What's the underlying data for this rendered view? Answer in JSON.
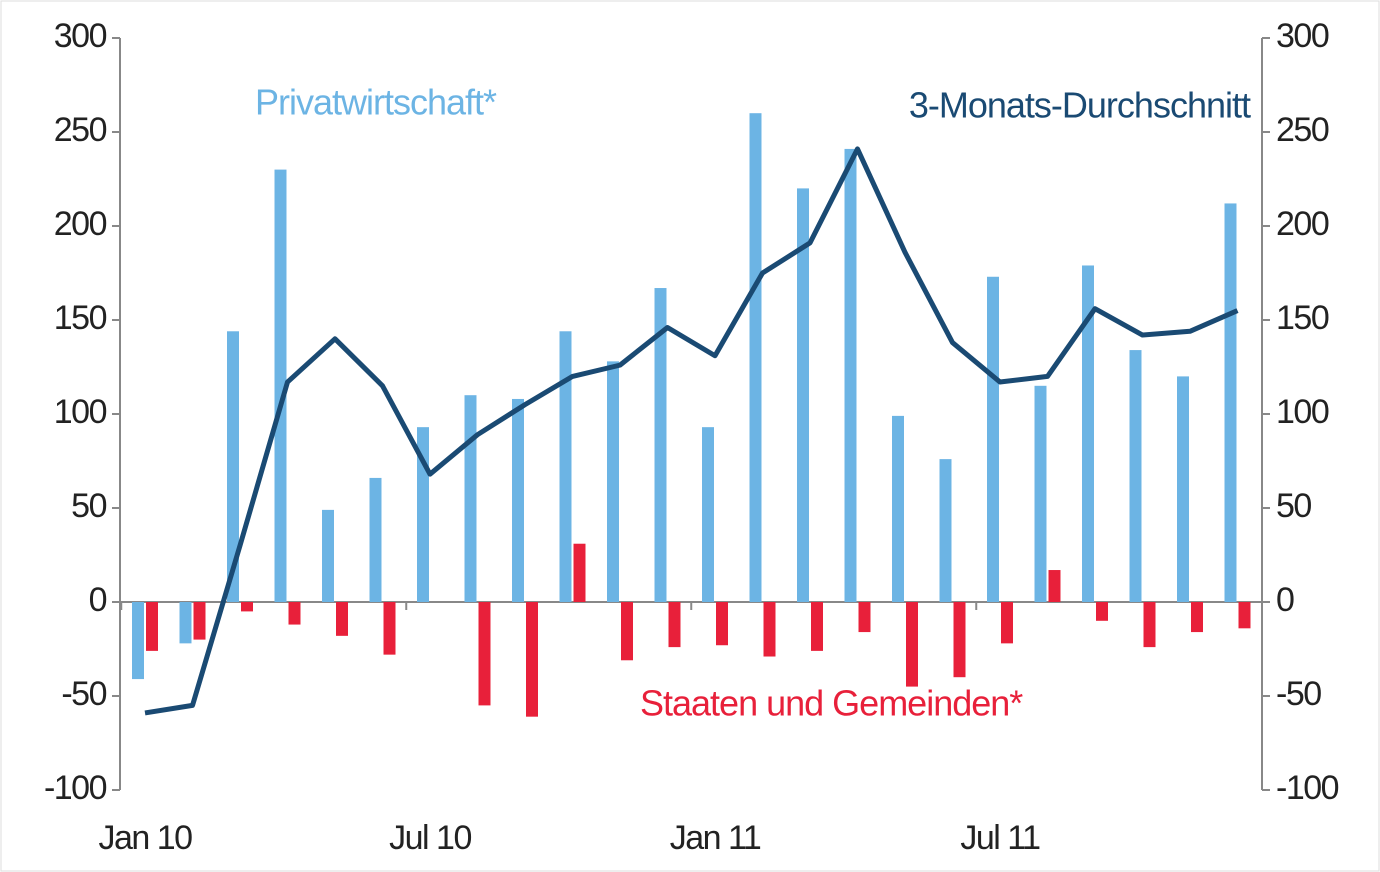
{
  "chart_data": {
    "type": "bar_line",
    "categories": [
      "Jan 10",
      null,
      null,
      null,
      null,
      null,
      "Jul 10",
      null,
      null,
      null,
      null,
      null,
      "Jan 11",
      null,
      null,
      null,
      null,
      null,
      "Jul 11",
      null,
      null,
      null,
      null,
      null
    ],
    "series": [
      {
        "name": "Privatwirtschaft*",
        "type": "bar",
        "color": "#6cb4e4",
        "values": [
          -41,
          -22,
          144,
          230,
          49,
          66,
          93,
          110,
          108,
          144,
          128,
          167,
          93,
          260,
          220,
          241,
          99,
          76,
          173,
          115,
          179,
          134,
          120,
          212
        ]
      },
      {
        "name": "Staaten und Gemeinden*",
        "type": "bar",
        "color": "#e8203a",
        "values": [
          -26,
          -20,
          -5,
          -12,
          -18,
          -28,
          0,
          -55,
          -61,
          31,
          -31,
          -24,
          -23,
          -29,
          -26,
          -16,
          -45,
          -40,
          -22,
          17,
          -10,
          -24,
          -16,
          -14
        ]
      },
      {
        "name": "3-Monats-Durchschnitt",
        "type": "line",
        "color": "#1a4a73",
        "axis": "y2",
        "values": [
          -59,
          -55,
          30,
          117,
          140,
          115,
          68,
          89,
          105,
          120,
          126,
          146,
          131,
          175,
          191,
          241,
          186,
          138,
          117,
          120,
          156,
          142,
          144,
          155
        ]
      }
    ],
    "ylim": [
      -100,
      300
    ],
    "yticks": [
      -100,
      -50,
      0,
      50,
      100,
      150,
      200,
      250,
      300
    ],
    "y2lim": [
      -100,
      300
    ],
    "y2ticks": [
      -100,
      -50,
      0,
      50,
      100,
      150,
      200,
      250,
      300
    ],
    "grid": false
  }
}
